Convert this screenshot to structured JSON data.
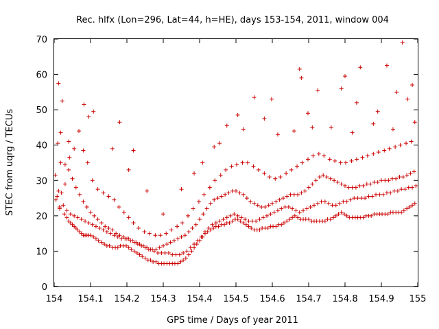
{
  "chart_data": {
    "type": "scatter",
    "title": "Rec. hlfx (Lon=296, Lat=44, h=HE), days 153-154, 2011, window 004",
    "xlabel": "GPS time / Days of year 2011",
    "ylabel": "STEC from uqrg / TECUs",
    "xlim": [
      154,
      155
    ],
    "ylim": [
      0,
      70
    ],
    "xticks": [
      "154",
      "154.1",
      "154.2",
      "154.3",
      "154.4",
      "154.5",
      "154.6",
      "154.7",
      "154.8",
      "154.9",
      "155"
    ],
    "yticks": [
      "0",
      "10",
      "20",
      "30",
      "40",
      "50",
      "60",
      "70"
    ],
    "grid": false,
    "marker": "plus",
    "color": "#cc0000",
    "series": [
      {
        "x": [
          154.008,
          154.01,
          154.012,
          154.015,
          154.018,
          154.022,
          154.028,
          154.035,
          154.04,
          154.045,
          154.05,
          154.055,
          154.06,
          154.065,
          154.07,
          154.075,
          154.08,
          154.085,
          154.09,
          154.095,
          154.1,
          154.108,
          154.115,
          154.122,
          154.13,
          154.138,
          154.145,
          154.152,
          154.16,
          154.168,
          154.175,
          154.182,
          154.19,
          154.198,
          154.205,
          154.212,
          154.22,
          154.228,
          154.235,
          154.242,
          154.25,
          154.258,
          154.265,
          154.272,
          154.28,
          154.288,
          154.295,
          154.302,
          154.31,
          154.318,
          154.325,
          154.332,
          154.34,
          154.348,
          154.355,
          154.362,
          154.37,
          154.378,
          154.385,
          154.392,
          154.4,
          154.408,
          154.415,
          154.422,
          154.43,
          154.438,
          154.445,
          154.452,
          154.46,
          154.468,
          154.475,
          154.482,
          154.49,
          154.498,
          154.505,
          154.512,
          154.52,
          154.528,
          154.535,
          154.542,
          154.55,
          154.558,
          154.565,
          154.572,
          154.58,
          154.588,
          154.595,
          154.602,
          154.61,
          154.618,
          154.625,
          154.632,
          154.64,
          154.648,
          154.655,
          154.662,
          154.67,
          154.678,
          154.685,
          154.692,
          154.7,
          154.708,
          154.715,
          154.722,
          154.73,
          154.738,
          154.745,
          154.752,
          154.76,
          154.768,
          154.775,
          154.782,
          154.79,
          154.798,
          154.805,
          154.812,
          154.82,
          154.828,
          154.835,
          154.842,
          154.85,
          154.858,
          154.865,
          154.872,
          154.88,
          154.888,
          154.895,
          154.902,
          154.91,
          154.918,
          154.925,
          154.932,
          154.94,
          154.948,
          154.955,
          154.962,
          154.97,
          154.978,
          154.985,
          154.992
        ],
        "y": [
          25.5,
          40.5,
          57.5,
          22.0,
          43.5,
          52.5,
          20.5,
          19.5,
          18.5,
          18.0,
          17.5,
          17.0,
          16.5,
          16.0,
          15.5,
          15.0,
          14.5,
          14.5,
          14.5,
          14.5,
          14.5,
          14.0,
          13.5,
          13.0,
          12.5,
          12.0,
          11.5,
          11.5,
          11.0,
          11.0,
          11.0,
          11.5,
          11.5,
          11.5,
          11.0,
          10.5,
          10.0,
          9.5,
          9.0,
          8.5,
          8.0,
          7.5,
          7.5,
          7.0,
          7.0,
          6.5,
          6.5,
          6.5,
          6.5,
          6.5,
          6.5,
          6.5,
          6.5,
          7.0,
          7.5,
          8.0,
          9.0,
          10.0,
          11.0,
          12.0,
          13.0,
          14.0,
          15.0,
          15.5,
          16.0,
          16.5,
          17.0,
          17.0,
          17.5,
          17.5,
          18.0,
          18.0,
          18.5,
          19.0,
          19.0,
          18.5,
          18.0,
          17.5,
          17.0,
          16.5,
          16.0,
          16.0,
          16.0,
          16.5,
          16.5,
          16.5,
          17.0,
          17.0,
          17.0,
          17.5,
          17.5,
          18.0,
          18.5,
          19.0,
          19.5,
          20.0,
          19.5,
          19.0,
          19.0,
          19.0,
          19.0,
          18.5,
          18.5,
          18.5,
          18.5,
          18.5,
          18.5,
          19.0,
          19.0,
          19.5,
          20.0,
          20.5,
          21.0,
          20.5,
          20.0,
          19.5,
          19.5,
          19.5,
          19.5,
          19.5,
          19.5,
          20.0,
          20.0,
          20.0,
          20.5,
          20.5,
          20.5,
          20.5,
          20.5,
          20.5,
          21.0,
          21.0,
          21.0,
          21.0,
          21.0,
          21.5,
          22.0,
          22.5,
          23.0,
          23.5
        ]
      },
      {
        "x": [
          154.005,
          154.015,
          154.025,
          154.035,
          154.045,
          154.055,
          154.065,
          154.075,
          154.085,
          154.095,
          154.105,
          154.115,
          154.125,
          154.135,
          154.145,
          154.155,
          154.165,
          154.175,
          154.185,
          154.195,
          154.205,
          154.215,
          154.225,
          154.235,
          154.245,
          154.255,
          154.265,
          154.275,
          154.285,
          154.295,
          154.305,
          154.315,
          154.325,
          154.335,
          154.345,
          154.355,
          154.365,
          154.375,
          154.385,
          154.395,
          154.405,
          154.415,
          154.425,
          154.435,
          154.445,
          154.455,
          154.465,
          154.475,
          154.485,
          154.495,
          154.505,
          154.515,
          154.525,
          154.535,
          154.545,
          154.555,
          154.565,
          154.575,
          154.585,
          154.595,
          154.605,
          154.615,
          154.625,
          154.635,
          154.645,
          154.655,
          154.665,
          154.675,
          154.685,
          154.695,
          154.705,
          154.715,
          154.725,
          154.735,
          154.745,
          154.755,
          154.765,
          154.775,
          154.785,
          154.795,
          154.805,
          154.815,
          154.825,
          154.835,
          154.845,
          154.855,
          154.865,
          154.875,
          154.885,
          154.895,
          154.905,
          154.915,
          154.925,
          154.935,
          154.945,
          154.955,
          154.965,
          154.975,
          154.985,
          154.995
        ],
        "y": [
          24.5,
          22.5,
          23.0,
          21.5,
          20.5,
          20.0,
          19.5,
          19.0,
          18.5,
          18.0,
          17.5,
          17.0,
          16.5,
          16.0,
          15.5,
          15.0,
          14.5,
          14.0,
          13.5,
          13.5,
          13.5,
          13.0,
          12.5,
          12.0,
          11.5,
          11.0,
          10.5,
          10.0,
          9.5,
          9.5,
          9.5,
          9.5,
          9.0,
          9.0,
          9.0,
          9.5,
          10.0,
          11.0,
          12.0,
          13.0,
          14.0,
          15.5,
          16.5,
          17.5,
          18.0,
          18.5,
          19.0,
          19.5,
          20.0,
          20.5,
          20.0,
          19.5,
          19.0,
          18.5,
          18.5,
          18.5,
          19.0,
          19.5,
          20.0,
          20.5,
          21.0,
          21.5,
          22.0,
          22.5,
          22.5,
          22.0,
          21.5,
          21.0,
          21.5,
          22.0,
          22.5,
          23.0,
          23.5,
          24.0,
          24.0,
          23.5,
          23.0,
          23.0,
          23.5,
          24.0,
          24.0,
          24.5,
          25.0,
          25.0,
          25.0,
          25.0,
          25.5,
          25.5,
          26.0,
          26.0,
          26.0,
          26.5,
          26.5,
          27.0,
          27.0,
          27.5,
          27.5,
          28.0,
          28.0,
          28.5
        ]
      },
      {
        "x": [
          154.003,
          154.012,
          154.02,
          154.03,
          154.04,
          154.05,
          154.06,
          154.07,
          154.08,
          154.09,
          154.1,
          154.11,
          154.12,
          154.13,
          154.14,
          154.15,
          154.16,
          154.17,
          154.18,
          154.19,
          154.2,
          154.21,
          154.22,
          154.23,
          154.24,
          154.25,
          154.26,
          154.27,
          154.28,
          154.29,
          154.3,
          154.31,
          154.32,
          154.33,
          154.34,
          154.35,
          154.36,
          154.37,
          154.38,
          154.39,
          154.4,
          154.41,
          154.42,
          154.43,
          154.44,
          154.45,
          154.46,
          154.47,
          154.48,
          154.49,
          154.5,
          154.51,
          154.52,
          154.53,
          154.54,
          154.55,
          154.56,
          154.57,
          154.58,
          154.59,
          154.6,
          154.61,
          154.62,
          154.63,
          154.64,
          154.65,
          154.66,
          154.67,
          154.68,
          154.69,
          154.7,
          154.71,
          154.72,
          154.73,
          154.74,
          154.75,
          154.76,
          154.77,
          154.78,
          154.79,
          154.8,
          154.81,
          154.82,
          154.83,
          154.84,
          154.85,
          154.86,
          154.87,
          154.88,
          154.89,
          154.9,
          154.91,
          154.92,
          154.93,
          154.94,
          154.95,
          154.96,
          154.97,
          154.98,
          154.99
        ],
        "y": [
          31.5,
          27.0,
          26.5,
          29.0,
          33.0,
          30.5,
          28.0,
          26.0,
          24.0,
          22.5,
          21.0,
          20.0,
          19.0,
          18.0,
          17.0,
          16.5,
          16.0,
          15.0,
          14.5,
          14.0,
          13.5,
          13.0,
          12.5,
          12.0,
          11.5,
          11.0,
          10.5,
          10.5,
          10.5,
          11.0,
          11.5,
          12.0,
          12.5,
          13.0,
          13.5,
          14.0,
          14.5,
          15.5,
          16.5,
          17.5,
          19.0,
          20.5,
          22.0,
          23.5,
          24.5,
          25.0,
          25.5,
          26.0,
          26.5,
          27.0,
          27.0,
          26.5,
          26.0,
          25.0,
          24.0,
          23.5,
          23.0,
          22.5,
          22.5,
          23.0,
          23.5,
          24.0,
          24.5,
          25.0,
          25.5,
          26.0,
          26.0,
          26.0,
          26.5,
          27.0,
          28.0,
          29.0,
          30.0,
          31.0,
          31.5,
          31.0,
          30.5,
          30.0,
          29.5,
          29.0,
          28.5,
          28.0,
          28.0,
          28.0,
          28.5,
          28.5,
          29.0,
          29.0,
          29.5,
          29.5,
          30.0,
          30.0,
          30.0,
          30.5,
          30.5,
          31.0,
          31.0,
          31.5,
          32.0,
          32.5
        ]
      },
      {
        "x": [
          154.018,
          154.03,
          154.042,
          154.055,
          154.068,
          154.08,
          154.092,
          154.105,
          154.12,
          154.135,
          154.15,
          154.165,
          154.178,
          154.192,
          154.205,
          154.218,
          154.232,
          154.248,
          154.262,
          154.278,
          154.292,
          154.308,
          154.322,
          154.338,
          154.352,
          154.368,
          154.382,
          154.398,
          154.412,
          154.428,
          154.442,
          154.458,
          154.472,
          154.488,
          154.502,
          154.518,
          154.532,
          154.548,
          154.562,
          154.578,
          154.592,
          154.608,
          154.622,
          154.638,
          154.652,
          154.668,
          154.682,
          154.698,
          154.712,
          154.728,
          154.742,
          154.758,
          154.772,
          154.788,
          154.802,
          154.818,
          154.832,
          154.848,
          154.862,
          154.878,
          154.892,
          154.908,
          154.922,
          154.938,
          154.952,
          154.968,
          154.982
        ],
        "y": [
          35.0,
          34.5,
          36.5,
          39.0,
          44.0,
          38.5,
          35.0,
          30.0,
          27.5,
          26.5,
          25.5,
          24.5,
          22.5,
          21.0,
          19.5,
          18.0,
          16.5,
          15.5,
          15.0,
          14.5,
          14.5,
          15.0,
          16.0,
          17.0,
          18.0,
          20.0,
          22.0,
          24.0,
          26.0,
          28.0,
          30.0,
          31.5,
          33.0,
          34.0,
          34.5,
          35.0,
          35.0,
          34.0,
          33.0,
          32.0,
          31.0,
          30.5,
          31.0,
          32.0,
          33.0,
          34.0,
          35.0,
          36.0,
          37.0,
          37.5,
          37.0,
          36.0,
          35.5,
          35.0,
          35.0,
          35.5,
          36.0,
          36.5,
          37.0,
          37.5,
          38.0,
          38.5,
          39.0,
          39.5,
          40.0,
          40.5,
          41.0
        ]
      },
      {
        "x": [
          154.04,
          154.082,
          154.095,
          154.108,
          154.16,
          154.18,
          154.205,
          154.218,
          154.255,
          154.3,
          154.35,
          154.385,
          154.408,
          154.44,
          154.455,
          154.475,
          154.505,
          154.52,
          154.55,
          154.578,
          154.598,
          154.615,
          154.66,
          154.675,
          154.68,
          154.698,
          154.71,
          154.725,
          154.762,
          154.79,
          154.8,
          154.82,
          154.832,
          154.842,
          154.878,
          154.89,
          154.915,
          154.932,
          154.942,
          154.958,
          154.972,
          154.985,
          154.992
        ],
        "y": [
          41.0,
          51.5,
          48.0,
          49.5,
          39.0,
          46.5,
          33.0,
          38.5,
          27.0,
          20.5,
          27.5,
          32.0,
          35.0,
          39.5,
          40.5,
          45.5,
          48.5,
          44.5,
          53.5,
          47.5,
          53.0,
          43.0,
          44.0,
          61.5,
          59.0,
          49.0,
          45.0,
          55.5,
          45.0,
          56.0,
          59.5,
          43.5,
          52.0,
          62.0,
          46.0,
          49.5,
          62.5,
          44.5,
          55.0,
          69.0,
          53.0,
          57.0,
          46.5
        ]
      }
    ]
  }
}
